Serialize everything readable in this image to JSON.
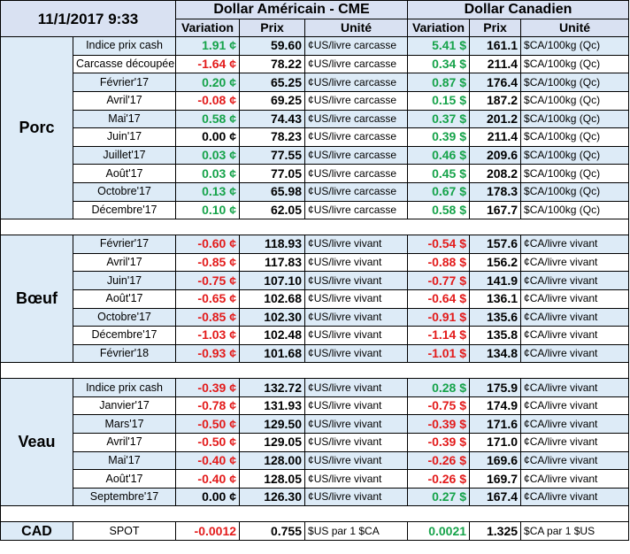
{
  "header": {
    "datetime": "11/1/2017 9:33",
    "usd_group": "Dollar Américain - CME",
    "cad_group": "Dollar Canadien",
    "col_variation": "Variation",
    "col_prix": "Prix",
    "col_unite": "Unité"
  },
  "sections": [
    {
      "title": "Porc",
      "rows": [
        {
          "label": "Indice prix cash",
          "usd_var": "1.91 ¢",
          "usd_var_sign": "pos",
          "usd_price": "59.60",
          "usd_unit": "¢US/livre carcasse",
          "cad_var": "5.41 $",
          "cad_var_sign": "pos",
          "cad_price": "161.1",
          "cad_unit": "$CA/100kg (Qc)"
        },
        {
          "label": "Carcasse découpée",
          "usd_var": "-1.64 ¢",
          "usd_var_sign": "neg",
          "usd_price": "78.22",
          "usd_unit": "¢US/livre carcasse",
          "cad_var": "0.34 $",
          "cad_var_sign": "pos",
          "cad_price": "211.4",
          "cad_unit": "$CA/100kg (Qc)"
        },
        {
          "label": "Février'17",
          "usd_var": "0.20 ¢",
          "usd_var_sign": "pos",
          "usd_price": "65.25",
          "usd_unit": "¢US/livre carcasse",
          "cad_var": "0.87 $",
          "cad_var_sign": "pos",
          "cad_price": "176.4",
          "cad_unit": "$CA/100kg (Qc)"
        },
        {
          "label": "Avril'17",
          "usd_var": "-0.08 ¢",
          "usd_var_sign": "neg",
          "usd_price": "69.25",
          "usd_unit": "¢US/livre carcasse",
          "cad_var": "0.15 $",
          "cad_var_sign": "pos",
          "cad_price": "187.2",
          "cad_unit": "$CA/100kg (Qc)"
        },
        {
          "label": "Mai'17",
          "usd_var": "0.58 ¢",
          "usd_var_sign": "pos",
          "usd_price": "74.43",
          "usd_unit": "¢US/livre carcasse",
          "cad_var": "0.37 $",
          "cad_var_sign": "pos",
          "cad_price": "201.2",
          "cad_unit": "$CA/100kg (Qc)"
        },
        {
          "label": "Juin'17",
          "usd_var": "0.00 ¢",
          "usd_var_sign": "zero",
          "usd_price": "78.23",
          "usd_unit": "¢US/livre carcasse",
          "cad_var": "0.39 $",
          "cad_var_sign": "pos",
          "cad_price": "211.4",
          "cad_unit": "$CA/100kg (Qc)"
        },
        {
          "label": "Juillet'17",
          "usd_var": "0.03 ¢",
          "usd_var_sign": "pos",
          "usd_price": "77.55",
          "usd_unit": "¢US/livre carcasse",
          "cad_var": "0.46 $",
          "cad_var_sign": "pos",
          "cad_price": "209.6",
          "cad_unit": "$CA/100kg (Qc)"
        },
        {
          "label": "Août'17",
          "usd_var": "0.03 ¢",
          "usd_var_sign": "pos",
          "usd_price": "77.05",
          "usd_unit": "¢US/livre carcasse",
          "cad_var": "0.45 $",
          "cad_var_sign": "pos",
          "cad_price": "208.2",
          "cad_unit": "$CA/100kg (Qc)"
        },
        {
          "label": "Octobre'17",
          "usd_var": "0.13 ¢",
          "usd_var_sign": "pos",
          "usd_price": "65.98",
          "usd_unit": "¢US/livre carcasse",
          "cad_var": "0.67 $",
          "cad_var_sign": "pos",
          "cad_price": "178.3",
          "cad_unit": "$CA/100kg (Qc)"
        },
        {
          "label": "Décembre'17",
          "usd_var": "0.10 ¢",
          "usd_var_sign": "pos",
          "usd_price": "62.05",
          "usd_unit": "¢US/livre carcasse",
          "cad_var": "0.58 $",
          "cad_var_sign": "pos",
          "cad_price": "167.7",
          "cad_unit": "$CA/100kg (Qc)"
        }
      ]
    },
    {
      "title": "Bœuf",
      "rows": [
        {
          "label": "Février'17",
          "usd_var": "-0.60 ¢",
          "usd_var_sign": "neg",
          "usd_price": "118.93",
          "usd_unit": "¢US/livre vivant",
          "cad_var": "-0.54 $",
          "cad_var_sign": "neg",
          "cad_price": "157.6",
          "cad_unit": "¢CA/livre vivant"
        },
        {
          "label": "Avril'17",
          "usd_var": "-0.85 ¢",
          "usd_var_sign": "neg",
          "usd_price": "117.83",
          "usd_unit": "¢US/livre vivant",
          "cad_var": "-0.88 $",
          "cad_var_sign": "neg",
          "cad_price": "156.2",
          "cad_unit": "¢CA/livre vivant"
        },
        {
          "label": "Juin'17",
          "usd_var": "-0.75 ¢",
          "usd_var_sign": "neg",
          "usd_price": "107.10",
          "usd_unit": "¢US/livre vivant",
          "cad_var": "-0.77 $",
          "cad_var_sign": "neg",
          "cad_price": "141.9",
          "cad_unit": "¢CA/livre vivant"
        },
        {
          "label": "Août'17",
          "usd_var": "-0.65 ¢",
          "usd_var_sign": "neg",
          "usd_price": "102.68",
          "usd_unit": "¢US/livre vivant",
          "cad_var": "-0.64 $",
          "cad_var_sign": "neg",
          "cad_price": "136.1",
          "cad_unit": "¢CA/livre vivant"
        },
        {
          "label": "Octobre'17",
          "usd_var": "-0.85 ¢",
          "usd_var_sign": "neg",
          "usd_price": "102.30",
          "usd_unit": "¢US/livre vivant",
          "cad_var": "-0.91 $",
          "cad_var_sign": "neg",
          "cad_price": "135.6",
          "cad_unit": "¢CA/livre vivant"
        },
        {
          "label": "Décembre'17",
          "usd_var": "-1.03 ¢",
          "usd_var_sign": "neg",
          "usd_price": "102.48",
          "usd_unit": "¢US/livre vivant",
          "cad_var": "-1.14 $",
          "cad_var_sign": "neg",
          "cad_price": "135.8",
          "cad_unit": "¢CA/livre vivant"
        },
        {
          "label": "Février'18",
          "usd_var": "-0.93 ¢",
          "usd_var_sign": "neg",
          "usd_price": "101.68",
          "usd_unit": "¢US/livre vivant",
          "cad_var": "-1.01 $",
          "cad_var_sign": "neg",
          "cad_price": "134.8",
          "cad_unit": "¢CA/livre vivant"
        }
      ]
    },
    {
      "title": "Veau",
      "rows": [
        {
          "label": "Indice prix cash",
          "usd_var": "-0.39 ¢",
          "usd_var_sign": "neg",
          "usd_price": "132.72",
          "usd_unit": "¢US/livre vivant",
          "cad_var": "0.28 $",
          "cad_var_sign": "pos",
          "cad_price": "175.9",
          "cad_unit": "¢CA/livre vivant"
        },
        {
          "label": "Janvier'17",
          "usd_var": "-0.78 ¢",
          "usd_var_sign": "neg",
          "usd_price": "131.93",
          "usd_unit": "¢US/livre vivant",
          "cad_var": "-0.75 $",
          "cad_var_sign": "neg",
          "cad_price": "174.9",
          "cad_unit": "¢CA/livre vivant"
        },
        {
          "label": "Mars'17",
          "usd_var": "-0.50 ¢",
          "usd_var_sign": "neg",
          "usd_price": "129.50",
          "usd_unit": "¢US/livre vivant",
          "cad_var": "-0.39 $",
          "cad_var_sign": "neg",
          "cad_price": "171.6",
          "cad_unit": "¢CA/livre vivant"
        },
        {
          "label": "Avril'17",
          "usd_var": "-0.50 ¢",
          "usd_var_sign": "neg",
          "usd_price": "129.05",
          "usd_unit": "¢US/livre vivant",
          "cad_var": "-0.39 $",
          "cad_var_sign": "neg",
          "cad_price": "171.0",
          "cad_unit": "¢CA/livre vivant"
        },
        {
          "label": "Mai'17",
          "usd_var": "-0.40 ¢",
          "usd_var_sign": "neg",
          "usd_price": "128.00",
          "usd_unit": "¢US/livre vivant",
          "cad_var": "-0.26 $",
          "cad_var_sign": "neg",
          "cad_price": "169.6",
          "cad_unit": "¢CA/livre vivant"
        },
        {
          "label": "Août'17",
          "usd_var": "-0.40 ¢",
          "usd_var_sign": "neg",
          "usd_price": "128.05",
          "usd_unit": "¢US/livre vivant",
          "cad_var": "-0.26 $",
          "cad_var_sign": "neg",
          "cad_price": "169.7",
          "cad_unit": "¢CA/livre vivant"
        },
        {
          "label": "Septembre'17",
          "usd_var": "0.00 ¢",
          "usd_var_sign": "zero",
          "usd_price": "126.30",
          "usd_unit": "¢US/livre vivant",
          "cad_var": "0.27 $",
          "cad_var_sign": "pos",
          "cad_price": "167.4",
          "cad_unit": "¢CA/livre vivant"
        }
      ]
    }
  ],
  "cad_row": {
    "title": "CAD",
    "label": "SPOT",
    "usd_var": "-0.0012",
    "usd_var_sign": "neg",
    "usd_price": "0.755",
    "usd_unit": "$US par 1 $CA",
    "cad_var": "0.0021",
    "cad_var_sign": "pos",
    "cad_price": "1.325",
    "cad_unit": "$CA par 1 $US"
  },
  "colors": {
    "header_bg": "#d9e1f2",
    "stripe_bg": "#ddebf7",
    "positive": "#16a34a",
    "negative": "#e31b1b"
  }
}
